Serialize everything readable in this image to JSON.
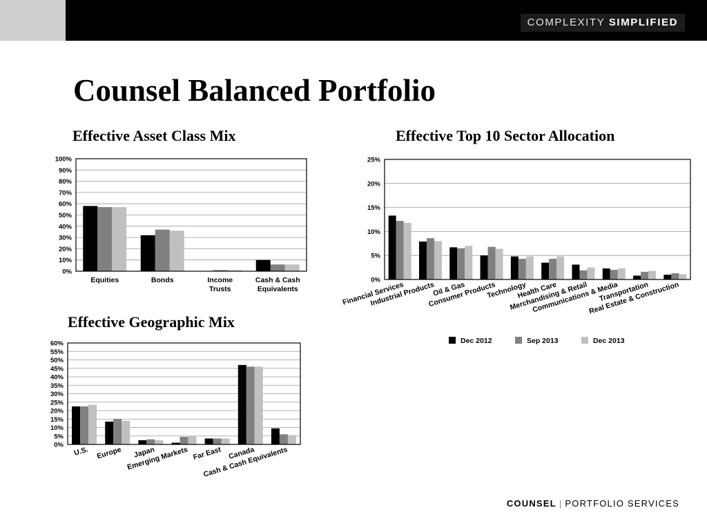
{
  "header": {
    "brand_left": "COMPLEXITY",
    "brand_right": "SIMPLIFIED"
  },
  "page": {
    "title": "Counsel Balanced Portfolio"
  },
  "footer": {
    "company": "COUNSEL",
    "divider": "|",
    "division": "PORTFOLIO SERVICES"
  },
  "colors": {
    "Dec 2012": "#000000",
    "Sep 2013": "#808080",
    "Dec 2013": "#c0c0c0"
  },
  "chart_data": [
    {
      "id": "asset",
      "type": "bar",
      "title": "Effective Asset Class Mix",
      "categories": [
        "Equities",
        "Bonds",
        "Income Trusts",
        "Cash & Cash Equivalents"
      ],
      "category_lines": [
        [
          "Equities"
        ],
        [
          "Bonds"
        ],
        [
          "Income",
          "Trusts"
        ],
        [
          "Cash & Cash",
          "Equivalents"
        ]
      ],
      "series": [
        {
          "name": "Dec 2012",
          "values": [
            58,
            32,
            0,
            10
          ]
        },
        {
          "name": "Sep 2013",
          "values": [
            57,
            37,
            1,
            6
          ]
        },
        {
          "name": "Dec 2013",
          "values": [
            57,
            36,
            1,
            6
          ]
        }
      ],
      "ylim": [
        0,
        100
      ],
      "ytick_step": 10,
      "tick_labels": [
        "0%",
        "10%",
        "20%",
        "30%",
        "40%",
        "50%",
        "60%",
        "70%",
        "80%",
        "90%",
        "100%"
      ],
      "grid": true
    },
    {
      "id": "sector",
      "type": "bar",
      "title": "Effective Top 10 Sector Allocation",
      "categories": [
        "Financial Services",
        "Industrial Products",
        "Oil & Gas",
        "Consumer Products",
        "Technology",
        "Health Care",
        "Merchandising & Retail",
        "Communications & Media",
        "Transportation",
        "Real Estate & Construction"
      ],
      "series": [
        {
          "name": "Dec 2012",
          "values": [
            13.3,
            7.9,
            6.7,
            5.0,
            4.8,
            3.5,
            3.1,
            2.3,
            0.8,
            1.0
          ]
        },
        {
          "name": "Sep 2013",
          "values": [
            12.2,
            8.6,
            6.5,
            6.8,
            4.3,
            4.3,
            1.9,
            2.0,
            1.6,
            1.3
          ]
        },
        {
          "name": "Dec 2013",
          "values": [
            11.8,
            8.0,
            7.0,
            6.4,
            4.8,
            4.8,
            2.5,
            2.3,
            1.8,
            1.1
          ]
        }
      ],
      "ylim": [
        0,
        25
      ],
      "ytick_step": 5,
      "tick_labels": [
        "0%",
        "5%",
        "10%",
        "15%",
        "20%",
        "25%"
      ],
      "grid": true,
      "legend": "bottom"
    },
    {
      "id": "geo",
      "type": "bar",
      "title": "Effective Geographic Mix",
      "categories": [
        "U.S.",
        "Europe",
        "Japan",
        "Emerging Markets",
        "Far East",
        "Canada",
        "Cash & Cash Equivalents"
      ],
      "series": [
        {
          "name": "Dec 2012",
          "values": [
            22.5,
            13.5,
            2.5,
            1.0,
            3.5,
            47.0,
            9.5
          ]
        },
        {
          "name": "Sep 2013",
          "values": [
            22.5,
            15.0,
            3.0,
            4.5,
            3.5,
            46.0,
            6.0
          ]
        },
        {
          "name": "Dec 2013",
          "values": [
            23.5,
            14.0,
            2.5,
            5.0,
            3.5,
            46.0,
            5.5
          ]
        }
      ],
      "ylim": [
        0,
        60
      ],
      "ytick_step": 5,
      "tick_labels": [
        "0%",
        "5%",
        "10%",
        "15%",
        "20%",
        "25%",
        "30%",
        "35%",
        "40%",
        "45%",
        "50%",
        "55%",
        "60%"
      ],
      "grid": true
    }
  ]
}
